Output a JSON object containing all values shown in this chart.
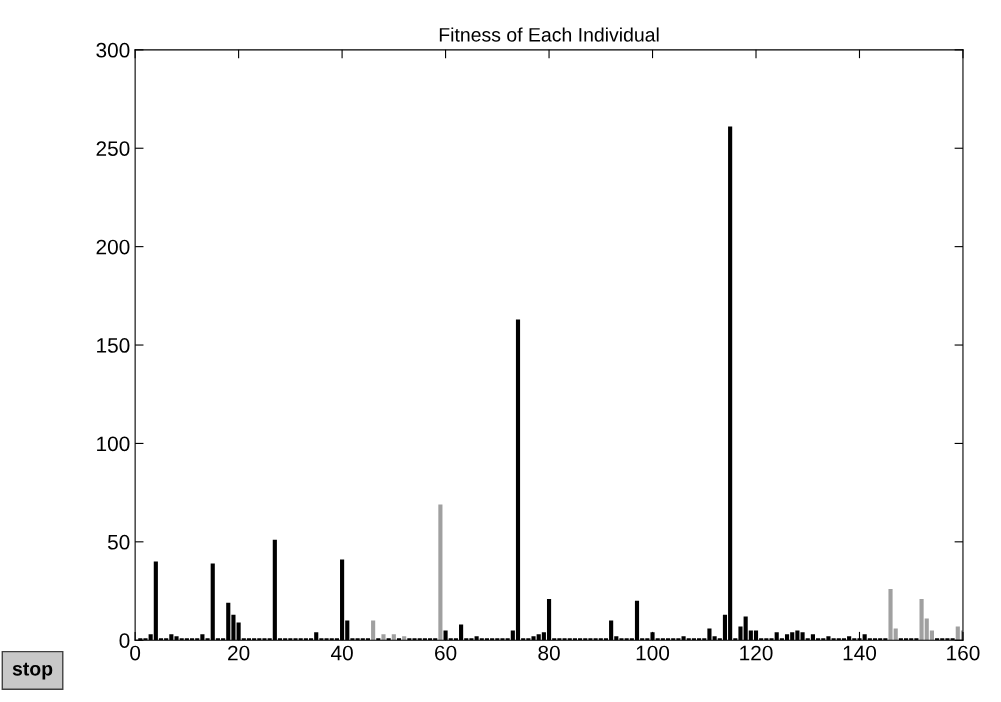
{
  "chart_data": {
    "type": "bar",
    "title": "Fitness of Each Individual",
    "x": [
      1,
      2,
      3,
      4,
      5,
      6,
      7,
      8,
      9,
      10,
      11,
      12,
      13,
      14,
      15,
      16,
      17,
      18,
      19,
      20,
      21,
      22,
      23,
      24,
      25,
      26,
      27,
      28,
      29,
      30,
      31,
      32,
      33,
      34,
      35,
      36,
      37,
      38,
      39,
      40,
      41,
      42,
      43,
      44,
      45,
      46,
      47,
      48,
      49,
      50,
      51,
      52,
      53,
      54,
      55,
      56,
      57,
      58,
      59,
      60,
      61,
      62,
      63,
      64,
      65,
      66,
      67,
      68,
      69,
      70,
      71,
      72,
      73,
      74,
      75,
      76,
      77,
      78,
      79,
      80,
      81,
      82,
      83,
      84,
      85,
      86,
      87,
      88,
      89,
      90,
      91,
      92,
      93,
      94,
      95,
      96,
      97,
      98,
      99,
      100,
      101,
      102,
      103,
      104,
      105,
      106,
      107,
      108,
      109,
      110,
      111,
      112,
      113,
      114,
      115,
      116,
      117,
      118,
      119,
      120,
      121,
      122,
      123,
      124,
      125,
      126,
      127,
      128,
      129,
      130,
      131,
      132,
      133,
      134,
      135,
      136,
      137,
      138,
      139,
      140,
      141,
      142,
      143,
      144,
      145,
      146,
      147,
      148,
      149,
      150,
      151,
      152,
      153,
      154,
      155,
      156,
      157,
      158,
      159,
      160
    ],
    "values": [
      1,
      1,
      3,
      40,
      1,
      1,
      3,
      2,
      1,
      1,
      1,
      1,
      3,
      1,
      39,
      1,
      1,
      19,
      13,
      9,
      1,
      1,
      1,
      1,
      1,
      1,
      51,
      1,
      1,
      1,
      1,
      1,
      1,
      1,
      4,
      1,
      1,
      1,
      1,
      41,
      10,
      1,
      1,
      1,
      1,
      10,
      1,
      3,
      1,
      3,
      1,
      2,
      1,
      1,
      1,
      1,
      1,
      1,
      69,
      5,
      1,
      1,
      8,
      1,
      1,
      2,
      1,
      1,
      1,
      1,
      1,
      1,
      5,
      163,
      1,
      1,
      2,
      3,
      4,
      21,
      1,
      1,
      1,
      1,
      1,
      1,
      1,
      1,
      1,
      1,
      1,
      10,
      2,
      1,
      1,
      1,
      20,
      1,
      1,
      4,
      1,
      1,
      1,
      1,
      1,
      2,
      1,
      1,
      1,
      1,
      6,
      2,
      1,
      13,
      261,
      1,
      7,
      12,
      5,
      5,
      1,
      1,
      1,
      4,
      1,
      3,
      4,
      5,
      4,
      1,
      3,
      1,
      1,
      2,
      1,
      1,
      1,
      2,
      1,
      1,
      3,
      1,
      1,
      1,
      1,
      26,
      6,
      1,
      1,
      1,
      1,
      21,
      11,
      5,
      1,
      1,
      1,
      1,
      7,
      5
    ],
    "colors": [
      "#000000",
      "#000000",
      "#000000",
      "#000000",
      "#000000",
      "#000000",
      "#000000",
      "#000000",
      "#000000",
      "#000000",
      "#000000",
      "#000000",
      "#000000",
      "#000000",
      "#000000",
      "#000000",
      "#000000",
      "#000000",
      "#000000",
      "#000000",
      "#000000",
      "#000000",
      "#000000",
      "#000000",
      "#000000",
      "#000000",
      "#000000",
      "#000000",
      "#000000",
      "#000000",
      "#000000",
      "#000000",
      "#000000",
      "#000000",
      "#000000",
      "#000000",
      "#000000",
      "#000000",
      "#000000",
      "#000000",
      "#000000",
      "#000000",
      "#000000",
      "#000000",
      "#000000",
      "#a0a0a0",
      "#000000",
      "#a0a0a0",
      "#000000",
      "#a0a0a0",
      "#000000",
      "#a0a0a0",
      "#000000",
      "#000000",
      "#000000",
      "#000000",
      "#000000",
      "#000000",
      "#a0a0a0",
      "#000000",
      "#000000",
      "#000000",
      "#000000",
      "#000000",
      "#000000",
      "#000000",
      "#000000",
      "#000000",
      "#000000",
      "#000000",
      "#000000",
      "#000000",
      "#000000",
      "#000000",
      "#000000",
      "#000000",
      "#000000",
      "#000000",
      "#000000",
      "#000000",
      "#000000",
      "#000000",
      "#000000",
      "#000000",
      "#000000",
      "#000000",
      "#000000",
      "#000000",
      "#000000",
      "#000000",
      "#000000",
      "#000000",
      "#000000",
      "#000000",
      "#000000",
      "#000000",
      "#000000",
      "#000000",
      "#000000",
      "#000000",
      "#000000",
      "#000000",
      "#000000",
      "#000000",
      "#000000",
      "#000000",
      "#000000",
      "#000000",
      "#000000",
      "#000000",
      "#000000",
      "#000000",
      "#000000",
      "#000000",
      "#000000",
      "#000000",
      "#000000",
      "#000000",
      "#000000",
      "#000000",
      "#000000",
      "#000000",
      "#000000",
      "#000000",
      "#000000",
      "#000000",
      "#000000",
      "#000000",
      "#000000",
      "#000000",
      "#000000",
      "#000000",
      "#000000",
      "#000000",
      "#000000",
      "#000000",
      "#000000",
      "#000000",
      "#000000",
      "#000000",
      "#000000",
      "#000000",
      "#000000",
      "#000000",
      "#000000",
      "#a0a0a0",
      "#a0a0a0",
      "#000000",
      "#000000",
      "#000000",
      "#000000",
      "#a0a0a0",
      "#a0a0a0",
      "#a0a0a0",
      "#000000",
      "#000000",
      "#000000",
      "#000000",
      "#a0a0a0",
      "#a0a0a0"
    ],
    "xlim": [
      0,
      160
    ],
    "xticks": [
      0,
      20,
      40,
      60,
      80,
      100,
      120,
      140,
      160
    ],
    "ylim": [
      0,
      300
    ],
    "yticks": [
      0,
      50,
      100,
      150,
      200,
      250,
      300
    ],
    "grid": false,
    "legend": false,
    "annotations": [
      "stop"
    ]
  }
}
